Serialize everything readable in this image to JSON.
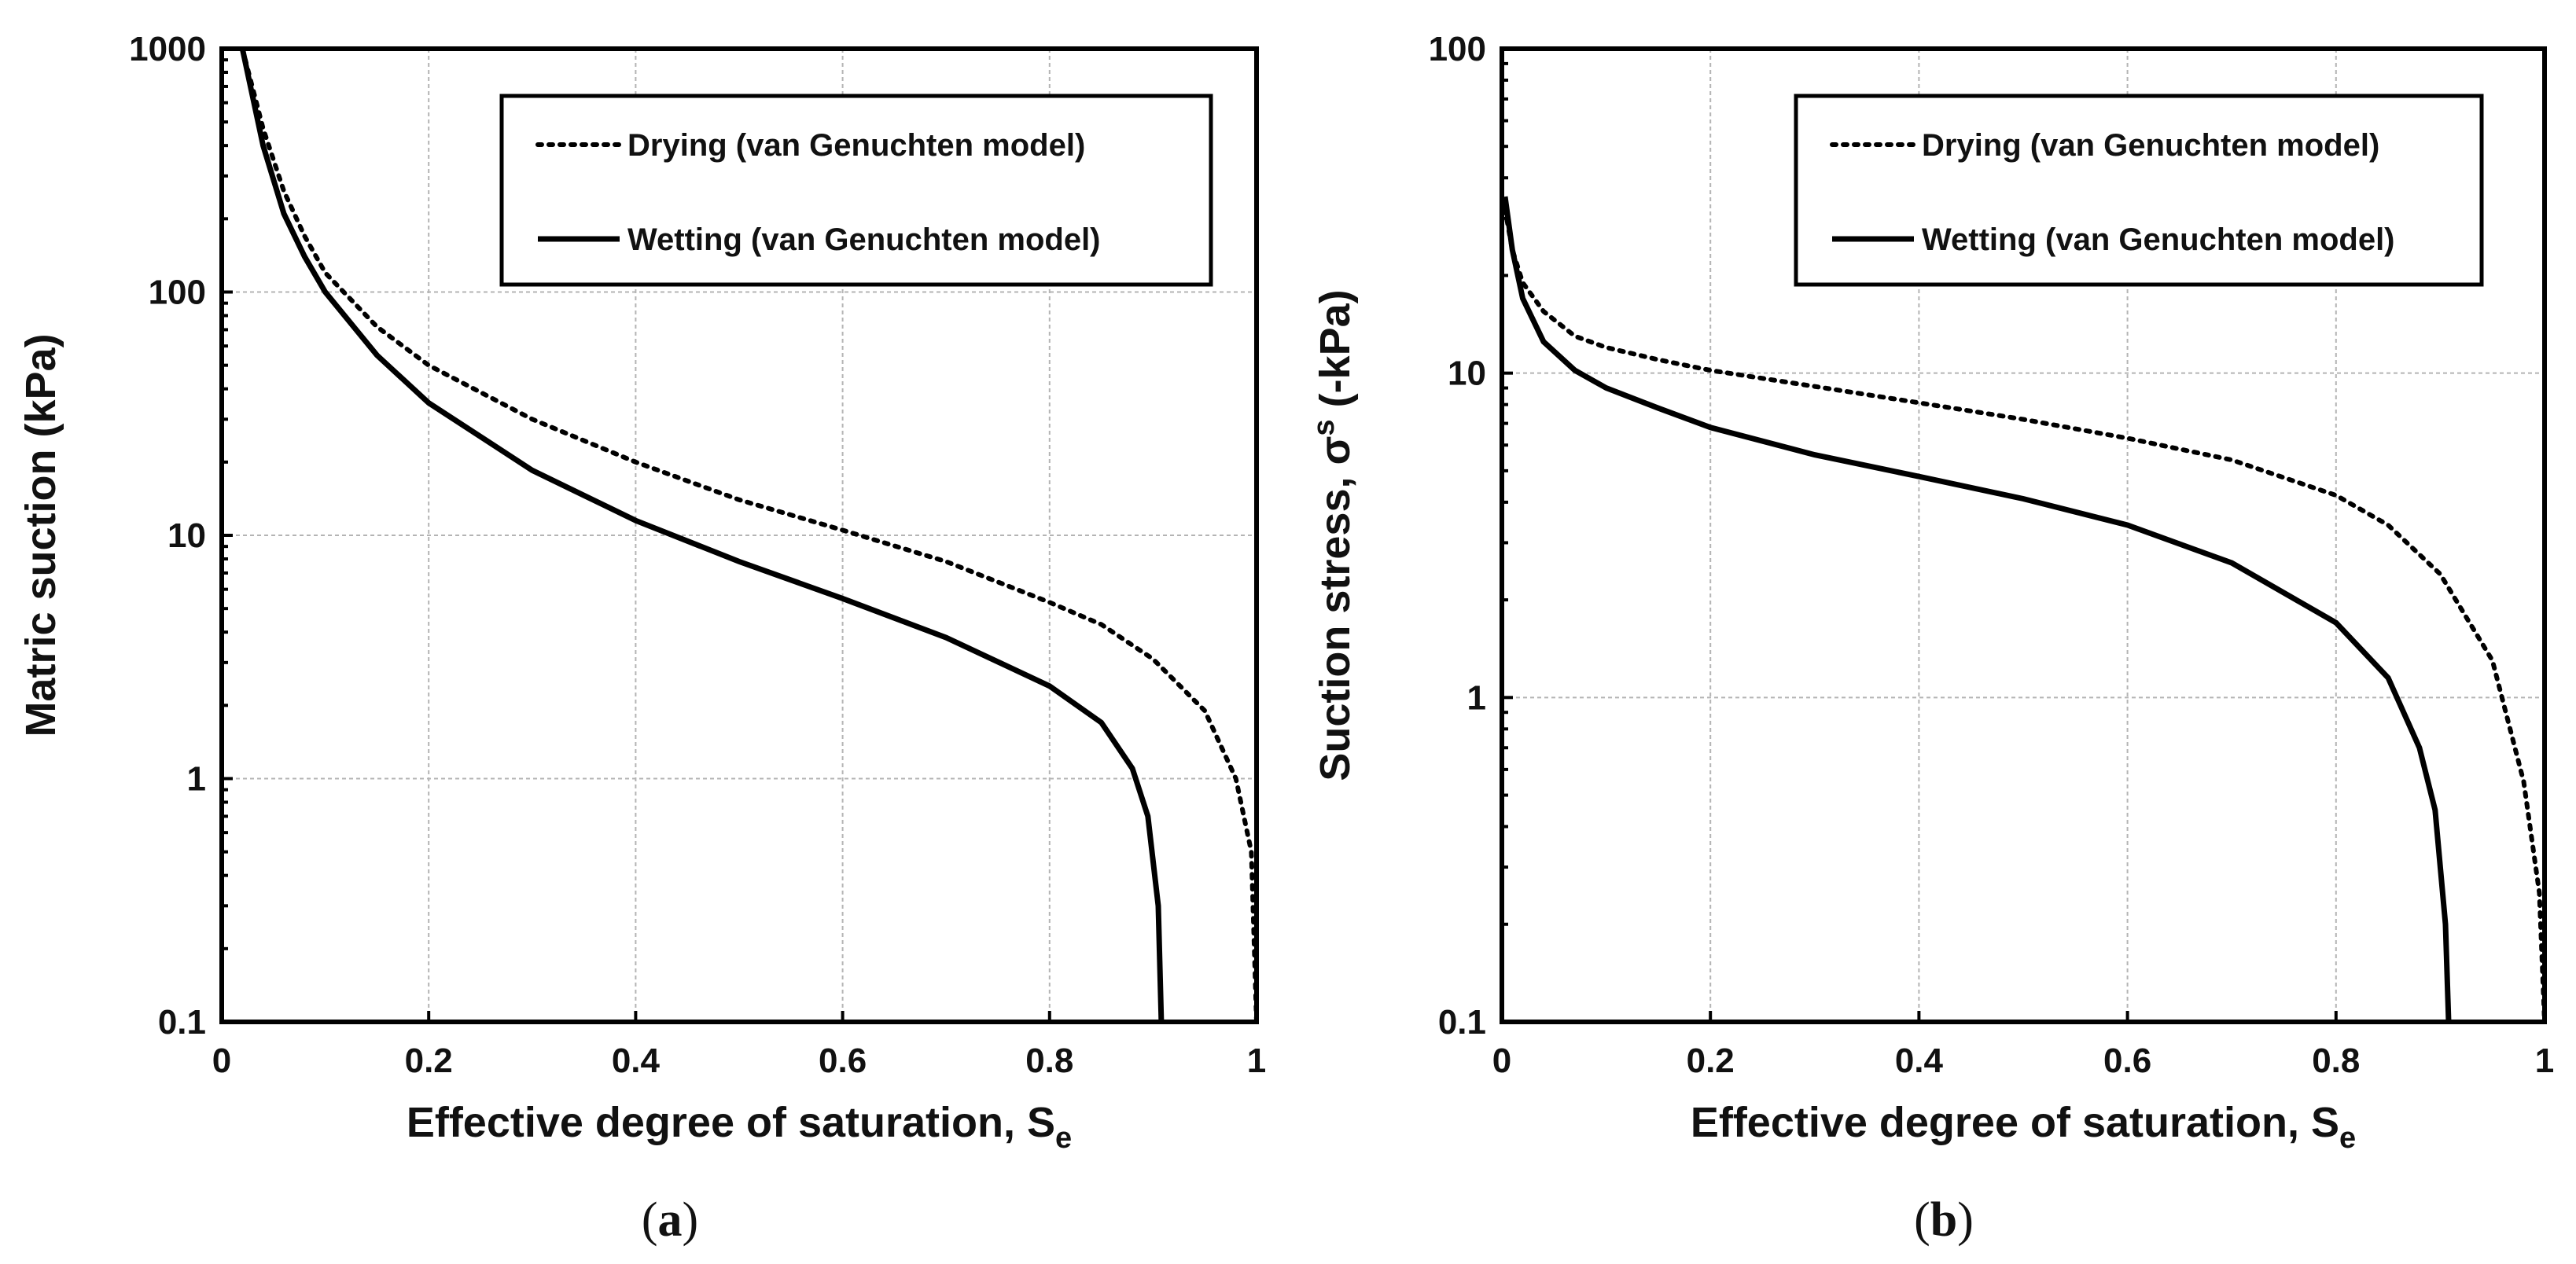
{
  "chart_data": [
    {
      "type": "line",
      "panel_label": "a",
      "xlabel": "Effective degree of saturation, S",
      "xlabel_sub": "e",
      "ylabel": "Matric suction (kPa)",
      "y_scale": "log",
      "xlim": [
        0,
        1
      ],
      "ylim": [
        0.1,
        1000
      ],
      "x_ticks": [
        "0",
        "0.2",
        "0.4",
        "0.6",
        "0.8",
        "1"
      ],
      "y_ticks": [
        "0.1",
        "1",
        "10",
        "100",
        "1000"
      ],
      "grid": true,
      "legend_position": "top-right",
      "series": [
        {
          "name": "Drying (van Genuchten model)",
          "style": "dotted",
          "x": [
            0.02,
            0.04,
            0.06,
            0.08,
            0.1,
            0.15,
            0.2,
            0.3,
            0.4,
            0.5,
            0.6,
            0.7,
            0.8,
            0.85,
            0.9,
            0.95,
            0.98,
            0.995,
            1.0
          ],
          "y": [
            1000,
            470,
            260,
            170,
            120,
            72,
            50,
            30,
            20,
            14,
            10.5,
            7.8,
            5.3,
            4.3,
            3.1,
            1.9,
            1.0,
            0.5,
            0.1
          ]
        },
        {
          "name": "Wetting (van Genuchten model)",
          "style": "solid",
          "x": [
            0.02,
            0.04,
            0.06,
            0.08,
            0.1,
            0.15,
            0.2,
            0.3,
            0.4,
            0.5,
            0.6,
            0.7,
            0.8,
            0.85,
            0.88,
            0.895,
            0.905,
            0.908
          ],
          "y": [
            1000,
            400,
            210,
            140,
            100,
            55,
            35,
            18.5,
            11.5,
            7.8,
            5.5,
            3.8,
            2.4,
            1.7,
            1.1,
            0.7,
            0.3,
            0.1
          ]
        }
      ]
    },
    {
      "type": "line",
      "panel_label": "b",
      "xlabel": "Effective degree of saturation, S",
      "xlabel_sub": "e",
      "ylabel": "Suction stress, σ",
      "ylabel_sup": "s",
      "ylabel_suffix": " (-kPa)",
      "y_scale": "log",
      "xlim": [
        0,
        1
      ],
      "ylim": [
        0.1,
        100
      ],
      "x_ticks": [
        "0",
        "0.2",
        "0.4",
        "0.6",
        "0.8",
        "1"
      ],
      "y_ticks": [
        "0.1",
        "1",
        "10",
        "100"
      ],
      "grid": true,
      "legend_position": "top-right",
      "series": [
        {
          "name": "Drying (van Genuchten model)",
          "style": "dotted",
          "x": [
            0.003,
            0.01,
            0.02,
            0.04,
            0.07,
            0.1,
            0.15,
            0.2,
            0.3,
            0.4,
            0.5,
            0.6,
            0.7,
            0.8,
            0.85,
            0.9,
            0.95,
            0.98,
            0.995,
            1.0
          ],
          "y": [
            32,
            24,
            19,
            15.5,
            13,
            12,
            11,
            10.2,
            9.1,
            8.1,
            7.2,
            6.3,
            5.4,
            4.2,
            3.4,
            2.4,
            1.3,
            0.55,
            0.25,
            0.1
          ]
        },
        {
          "name": "Wetting (van Genuchten model)",
          "style": "solid",
          "x": [
            0.003,
            0.01,
            0.02,
            0.04,
            0.07,
            0.1,
            0.15,
            0.2,
            0.3,
            0.4,
            0.5,
            0.6,
            0.7,
            0.8,
            0.85,
            0.88,
            0.895,
            0.905,
            0.908
          ],
          "y": [
            35,
            24,
            17,
            12.5,
            10.2,
            9.0,
            7.8,
            6.8,
            5.6,
            4.8,
            4.1,
            3.4,
            2.6,
            1.7,
            1.15,
            0.7,
            0.45,
            0.2,
            0.1
          ]
        }
      ]
    }
  ]
}
